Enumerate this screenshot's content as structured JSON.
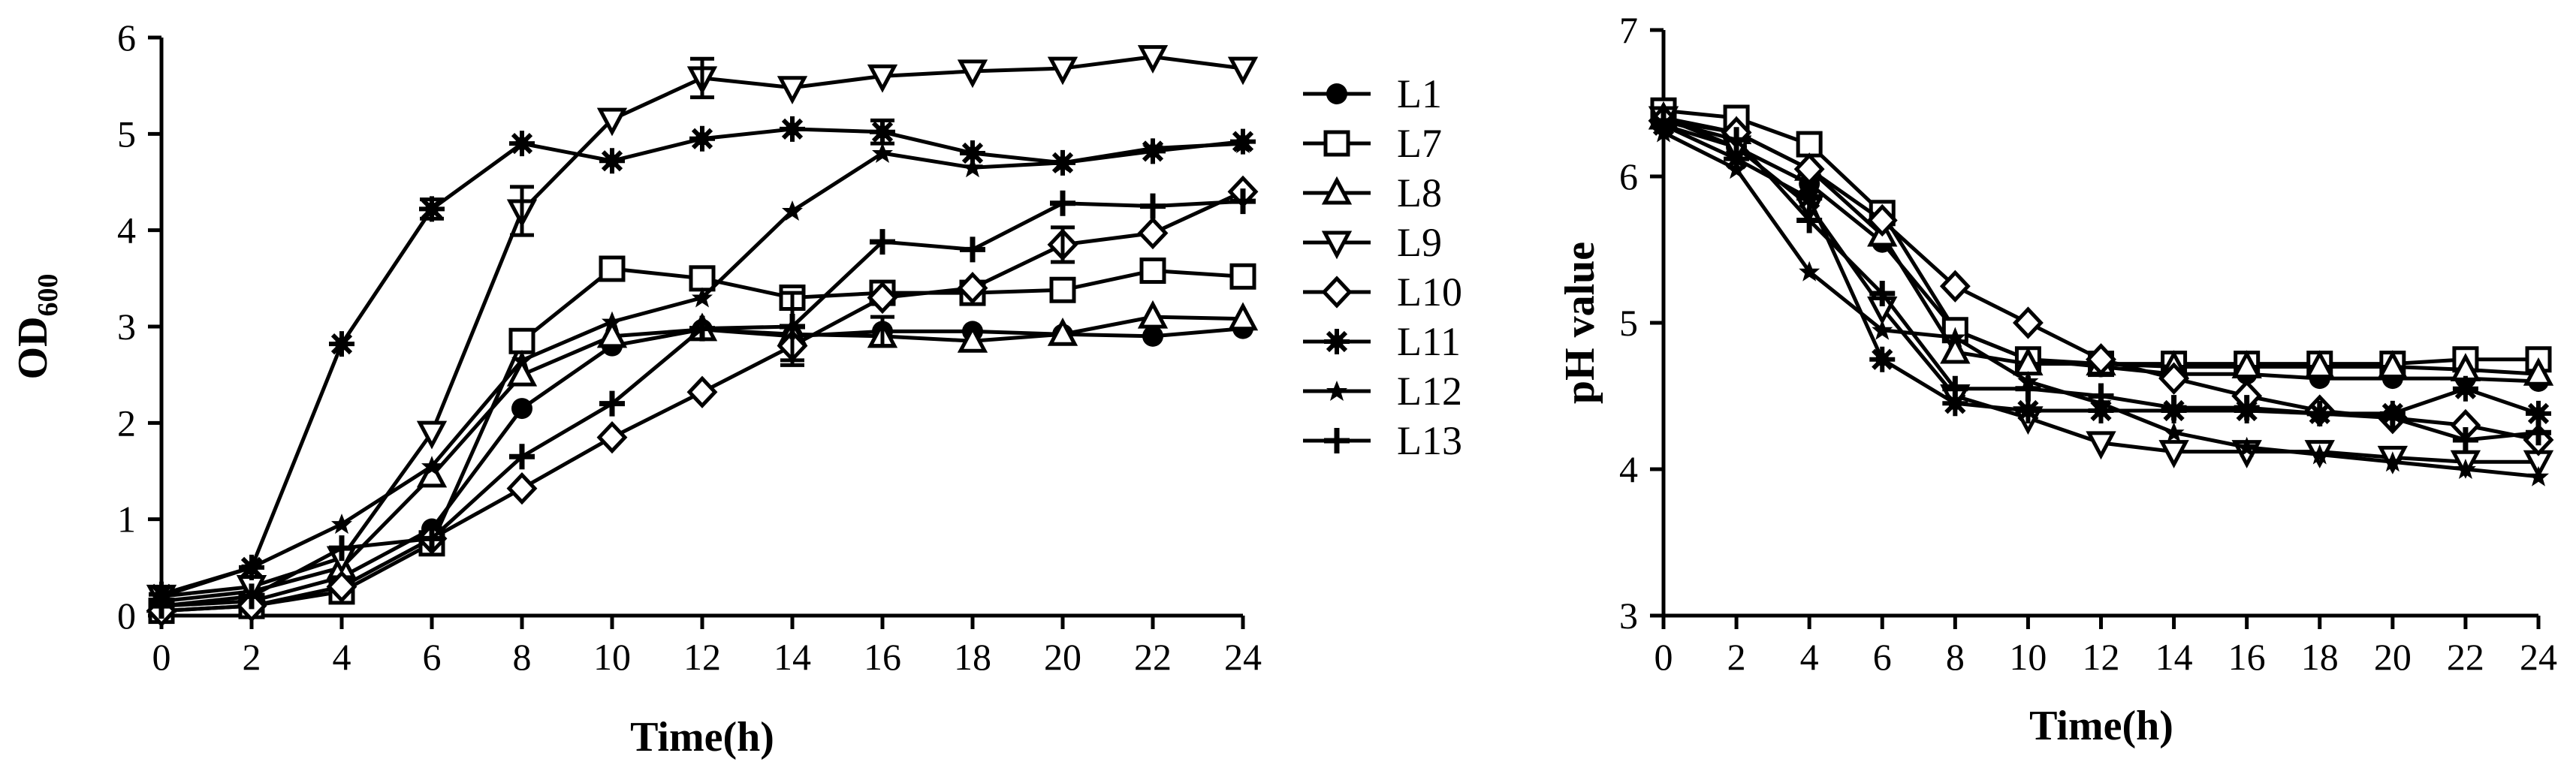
{
  "chart_data": [
    {
      "type": "line",
      "id": "od",
      "ylabel": "OD",
      "ylabel_sub": "600",
      "xlabel": "Time(h)",
      "x": [
        0,
        2,
        4,
        6,
        8,
        10,
        12,
        14,
        16,
        18,
        20,
        22,
        24
      ],
      "xticks": [
        "0",
        "2",
        "4",
        "6",
        "8",
        "10",
        "12",
        "14",
        "16",
        "18",
        "20",
        "22",
        "24"
      ],
      "yticks": [
        "0",
        "1",
        "2",
        "3",
        "4",
        "5",
        "6"
      ],
      "xlim": [
        0,
        24
      ],
      "ylim": [
        0,
        6
      ],
      "legend_position": "right",
      "series": [
        {
          "name": "L1",
          "marker": "circle",
          "values": [
            0.1,
            0.15,
            0.4,
            0.9,
            2.15,
            2.8,
            2.97,
            2.9,
            2.95,
            2.95,
            2.92,
            2.9,
            2.98
          ]
        },
        {
          "name": "L7",
          "marker": "square",
          "values": [
            0.05,
            0.1,
            0.25,
            0.75,
            2.85,
            3.6,
            3.5,
            3.3,
            3.35,
            3.35,
            3.38,
            3.58,
            3.52
          ]
        },
        {
          "name": "L8",
          "marker": "triangle-up",
          "values": [
            0.15,
            0.25,
            0.5,
            1.45,
            2.5,
            2.9,
            2.97,
            2.92,
            2.9,
            2.85,
            2.92,
            3.1,
            3.08
          ]
        },
        {
          "name": "L9",
          "marker": "triangle-down",
          "values": [
            0.2,
            0.3,
            0.6,
            1.9,
            4.2,
            5.15,
            5.58,
            5.48,
            5.6,
            5.65,
            5.68,
            5.8,
            5.68
          ]
        },
        {
          "name": "L10",
          "marker": "diamond",
          "values": [
            0.05,
            0.1,
            0.3,
            0.8,
            1.32,
            1.85,
            2.32,
            2.8,
            3.3,
            3.4,
            3.85,
            3.97,
            4.4
          ]
        },
        {
          "name": "L11",
          "marker": "star-burst",
          "values": [
            0.22,
            0.5,
            2.82,
            4.22,
            4.9,
            4.72,
            4.95,
            5.05,
            5.02,
            4.8,
            4.7,
            4.82,
            4.92
          ]
        },
        {
          "name": "L12",
          "marker": "star",
          "values": [
            0.2,
            0.5,
            0.95,
            1.55,
            2.65,
            3.05,
            3.3,
            4.2,
            4.8,
            4.65,
            4.7,
            4.85,
            4.9
          ]
        },
        {
          "name": "L13",
          "marker": "plus",
          "values": [
            0.1,
            0.2,
            0.7,
            0.8,
            1.65,
            2.2,
            2.98,
            3.0,
            3.88,
            3.8,
            4.28,
            4.25,
            4.3
          ]
        }
      ],
      "errors": [
        {
          "series": "L9",
          "x": 8,
          "err": 0.25
        },
        {
          "series": "L9",
          "x": 12,
          "err": 0.2
        },
        {
          "series": "L13",
          "x": 14,
          "err": 0.35
        },
        {
          "series": "L10",
          "x": 14,
          "err": 0.2
        },
        {
          "series": "L10",
          "x": 20,
          "err": 0.18
        },
        {
          "series": "L11",
          "x": 6,
          "err": 0.1
        },
        {
          "series": "L11",
          "x": 16,
          "err": 0.12
        },
        {
          "series": "L1",
          "x": 16,
          "err": 0.15
        }
      ]
    },
    {
      "type": "line",
      "id": "ph",
      "ylabel": "pH value",
      "xlabel": "Time(h)",
      "x": [
        0,
        2,
        4,
        6,
        8,
        10,
        12,
        14,
        16,
        18,
        20,
        22,
        24
      ],
      "xticks": [
        "0",
        "2",
        "4",
        "6",
        "8",
        "10",
        "12",
        "14",
        "16",
        "18",
        "20",
        "22",
        "24"
      ],
      "yticks": [
        "3",
        "4",
        "5",
        "6",
        "7"
      ],
      "xlim": [
        0,
        24
      ],
      "ylim": [
        3,
        7
      ],
      "series": [
        {
          "name": "L1",
          "marker": "circle",
          "values": [
            6.35,
            6.2,
            5.95,
            5.55,
            4.95,
            4.75,
            4.7,
            4.65,
            4.65,
            4.62,
            4.62,
            4.62,
            4.6
          ]
        },
        {
          "name": "L7",
          "marker": "square",
          "values": [
            6.45,
            6.4,
            6.22,
            5.75,
            4.95,
            4.75,
            4.72,
            4.72,
            4.72,
            4.72,
            4.72,
            4.75,
            4.75
          ]
        },
        {
          "name": "L8",
          "marker": "triangle-up",
          "values": [
            6.4,
            6.3,
            6.05,
            5.6,
            4.8,
            4.72,
            4.72,
            4.7,
            4.7,
            4.7,
            4.7,
            4.68,
            4.65
          ]
        },
        {
          "name": "L9",
          "marker": "triangle-down",
          "values": [
            6.4,
            6.2,
            5.8,
            5.1,
            4.5,
            4.35,
            4.18,
            4.12,
            4.12,
            4.12,
            4.08,
            4.05,
            4.05
          ]
        },
        {
          "name": "L10",
          "marker": "diamond",
          "values": [
            6.38,
            6.3,
            6.05,
            5.7,
            5.25,
            5.0,
            4.75,
            4.62,
            4.5,
            4.4,
            4.35,
            4.3,
            4.2
          ]
        },
        {
          "name": "L11",
          "marker": "star-burst",
          "values": [
            6.35,
            6.12,
            5.85,
            4.75,
            4.45,
            4.4,
            4.4,
            4.4,
            4.4,
            4.38,
            4.38,
            4.55,
            4.38
          ]
        },
        {
          "name": "L12",
          "marker": "star",
          "values": [
            6.3,
            6.05,
            5.35,
            4.95,
            4.9,
            4.6,
            4.45,
            4.25,
            4.15,
            4.1,
            4.05,
            4.0,
            3.95
          ]
        },
        {
          "name": "L13",
          "marker": "plus",
          "values": [
            6.38,
            6.25,
            5.7,
            5.2,
            4.55,
            4.55,
            4.5,
            4.42,
            4.42,
            4.38,
            4.35,
            4.2,
            4.25
          ]
        }
      ]
    }
  ]
}
